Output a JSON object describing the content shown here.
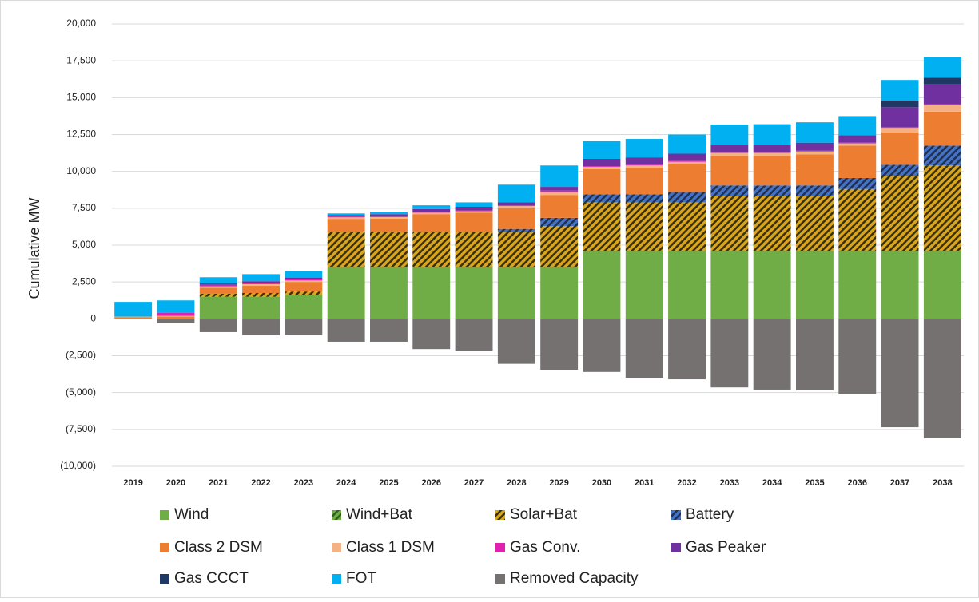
{
  "chart_data": {
    "type": "stacked_bar",
    "y_label": "Cumulative MW",
    "categories": [
      "2019",
      "2020",
      "2021",
      "2022",
      "2023",
      "2024",
      "2025",
      "2026",
      "2027",
      "2028",
      "2029",
      "2030",
      "2031",
      "2032",
      "2033",
      "2034",
      "2035",
      "2036",
      "2037",
      "2038"
    ],
    "ylim": [
      -10000,
      20000
    ],
    "yticks": [
      {
        "value": -10000,
        "label": "(10,000)"
      },
      {
        "value": -7500,
        "label": "(7,500)"
      },
      {
        "value": -5000,
        "label": "(5,000)"
      },
      {
        "value": -2500,
        "label": "(2,500)"
      },
      0,
      {
        "value": 2500,
        "label": "2,500"
      },
      {
        "value": 5000,
        "label": "5,000"
      },
      {
        "value": 7500,
        "label": "7,500"
      },
      {
        "value": 10000,
        "label": "10,000"
      },
      {
        "value": 12500,
        "label": "12,500"
      },
      {
        "value": 15000,
        "label": "15,000"
      },
      {
        "value": 17500,
        "label": "17,500"
      },
      {
        "value": 20000,
        "label": "20,000"
      }
    ],
    "grid": true,
    "series": [
      {
        "name": "Wind",
        "color": "#70ad47",
        "values": [
          0,
          0,
          1500,
          1500,
          1600,
          3500,
          3500,
          3500,
          3500,
          3500,
          3500,
          4600,
          4600,
          4600,
          4600,
          4600,
          4600,
          4600,
          4600,
          4600
        ]
      },
      {
        "name": "Wind+Bat",
        "color": "#70ad47",
        "hatch_color": "#2e5e1e",
        "values": [
          0,
          0,
          0,
          0,
          0,
          0,
          0,
          0,
          0,
          0,
          0,
          0,
          0,
          0,
          0,
          0,
          0,
          0,
          0,
          0
        ]
      },
      {
        "name": "Solar+Bat",
        "color": "#d9a520",
        "hatch_color": "#3a3000",
        "values": [
          0,
          0,
          200,
          250,
          250,
          2400,
          2400,
          2400,
          2400,
          2400,
          2800,
          3300,
          3300,
          3300,
          3750,
          3750,
          3750,
          4200,
          5100,
          5800
        ]
      },
      {
        "name": "Battery",
        "color": "#4472c4",
        "hatch_color": "#1f3050",
        "values": [
          0,
          0,
          0,
          0,
          0,
          0,
          0,
          0,
          0,
          200,
          550,
          550,
          550,
          700,
          700,
          700,
          700,
          750,
          750,
          1350
        ]
      },
      {
        "name": "Class 2 DSM",
        "color": "#ed7d31",
        "values": [
          100,
          150,
          400,
          500,
          650,
          880,
          900,
          1200,
          1300,
          1400,
          1550,
          1700,
          1800,
          1900,
          2000,
          2000,
          2100,
          2200,
          2200,
          2300
        ]
      },
      {
        "name": "Class 1 DSM",
        "color": "#f4b183",
        "values": [
          50,
          50,
          100,
          100,
          100,
          100,
          100,
          100,
          100,
          150,
          200,
          150,
          150,
          150,
          200,
          200,
          200,
          150,
          300,
          450
        ]
      },
      {
        "name": "Gas Conv.",
        "color": "#e020b0",
        "values": [
          0,
          200,
          100,
          100,
          100,
          50,
          50,
          50,
          50,
          50,
          100,
          50,
          50,
          50,
          50,
          50,
          50,
          50,
          50,
          50
        ]
      },
      {
        "name": "Gas Peaker",
        "color": "#7030a0",
        "values": [
          0,
          0,
          100,
          100,
          100,
          100,
          150,
          200,
          250,
          200,
          250,
          500,
          500,
          500,
          500,
          500,
          550,
          500,
          1350,
          1350
        ]
      },
      {
        "name": "Gas CCCT",
        "color": "#1f3864",
        "values": [
          0,
          0,
          0,
          0,
          0,
          0,
          0,
          0,
          0,
          0,
          0,
          0,
          0,
          0,
          0,
          0,
          0,
          0,
          450,
          450
        ]
      },
      {
        "name": "FOT",
        "color": "#00b0f0",
        "values": [
          1000,
          850,
          420,
          480,
          450,
          120,
          160,
          250,
          300,
          1200,
          1450,
          1200,
          1250,
          1300,
          1370,
          1400,
          1380,
          1300,
          1400,
          1400
        ]
      },
      {
        "name": "Removed Capacity",
        "color": "#767171",
        "values": [
          0,
          -300,
          -900,
          -1100,
          -1100,
          -1550,
          -1550,
          -2050,
          -2150,
          -3050,
          -3450,
          -3600,
          -4000,
          -4100,
          -4650,
          -4800,
          -4850,
          -5100,
          -7350,
          -8100
        ]
      }
    ]
  }
}
